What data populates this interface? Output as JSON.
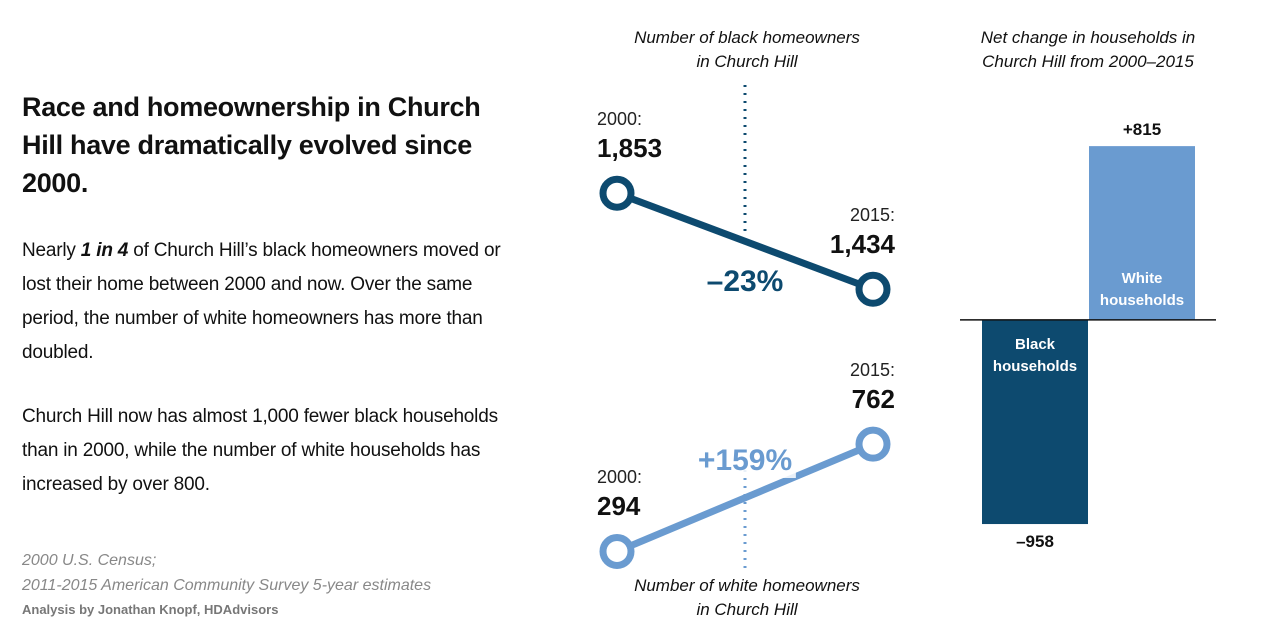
{
  "header": {
    "title": "Race and homeownership in Church Hill have dramatically evolved since 2000."
  },
  "text": {
    "paragraph_1": [
      "Nearly ",
      "1 in 4",
      " of Church Hill’s black homeowners moved or lost their home between 2000 and now. Over the same period, the number of white homeowners has more than doubled."
    ],
    "paragraph_2": "Church Hill now has almost 1,000 fewer black households than in 2000, while the number of white households has increased by over 800."
  },
  "source": {
    "lines": [
      "2000 U.S. Census;",
      "2011-2015 American Community Survey 5-year estimates"
    ],
    "credit": "Analysis by Jonathan Knopf, HDAdvisors"
  },
  "chart_data": [
    {
      "type": "slope",
      "title": "Number of black homeowners in Church Hill",
      "title_position": "top",
      "categories": [
        "2000:",
        "2015:"
      ],
      "values": [
        1853,
        1434
      ],
      "value_labels": [
        "1,853",
        "1,434"
      ],
      "annotation": "–23%",
      "color": "#0d4a6f",
      "ylim": [
        1300,
        1950
      ]
    },
    {
      "type": "slope",
      "title": "Number of white homeowners in Church Hill",
      "title_position": "bottom",
      "categories": [
        "2000:",
        "2015:"
      ],
      "values": [
        294,
        762
      ],
      "value_labels": [
        "294",
        "762"
      ],
      "annotation": "+159%",
      "color": "#6a9bd0",
      "ylim": [
        200,
        850
      ]
    },
    {
      "type": "bar",
      "title": "Net change in households in Church Hill from 2000–2015",
      "categories": [
        "Black households",
        "White households"
      ],
      "values": [
        -958,
        815
      ],
      "value_labels": [
        "–958",
        "+815"
      ],
      "colors": [
        "#0d4a6f",
        "#6a9bd0"
      ],
      "ylim": [
        -1000,
        900
      ]
    }
  ]
}
